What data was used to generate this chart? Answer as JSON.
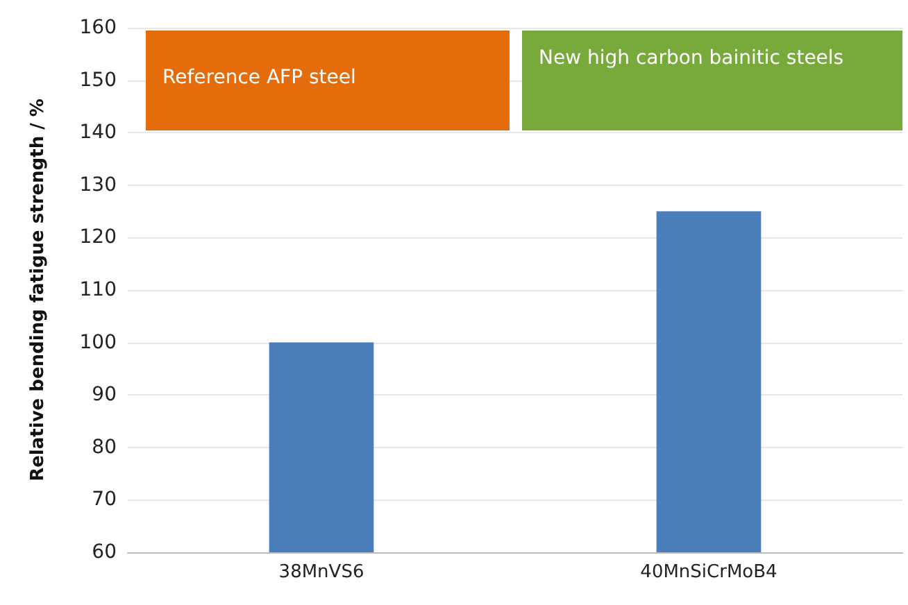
{
  "chart_data": {
    "type": "bar",
    "ylabel": "Relative bending fatigue strength / %",
    "categories": [
      "38MnVS6",
      "40MnSiCrMoB4"
    ],
    "values": [
      100,
      125
    ],
    "color": "#4a7ebb",
    "ylim": [
      60,
      160
    ],
    "yticks": [
      60,
      70,
      80,
      90,
      100,
      110,
      120,
      130,
      140,
      150,
      160
    ],
    "grid": "y",
    "annotations": [
      "Reference AFP steel",
      "New high carbon bainitic steels"
    ]
  }
}
